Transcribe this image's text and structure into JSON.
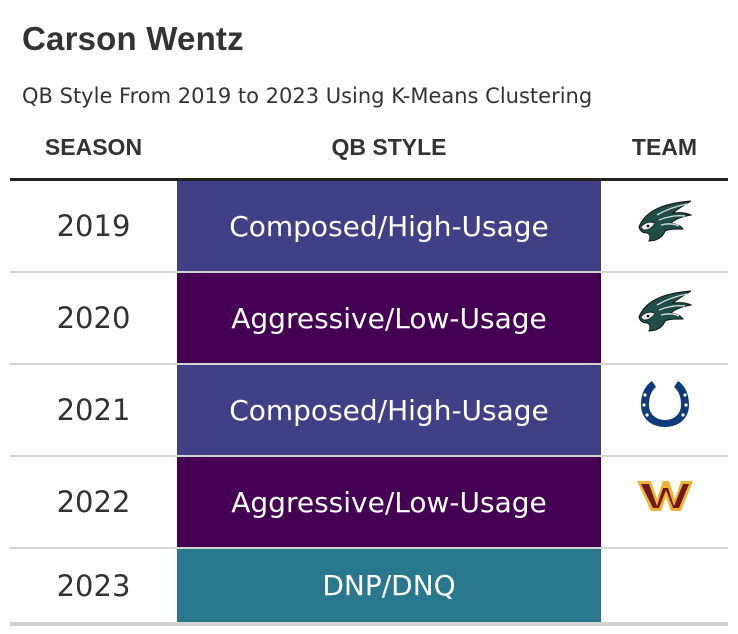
{
  "title": "Carson Wentz",
  "subtitle": "QB Style From 2019 to 2023 Using K-Means Clustering",
  "headers": {
    "season": "SEASON",
    "style": "QB STYLE",
    "team": "TEAM"
  },
  "colors": {
    "composed": "#413f86",
    "aggressive": "#440154",
    "dnp": "#2a788e"
  },
  "rows": [
    {
      "season": "2019",
      "style": "Composed/High-Usage",
      "team_icon": "eagles-logo-icon"
    },
    {
      "season": "2020",
      "style": "Aggressive/Low-Usage",
      "team_icon": "eagles-logo-icon"
    },
    {
      "season": "2021",
      "style": "Composed/High-Usage",
      "team_icon": "colts-horseshoe-icon"
    },
    {
      "season": "2022",
      "style": "Aggressive/Low-Usage",
      "team_icon": "commanders-w-icon"
    },
    {
      "season": "2023",
      "style": "DNP/DNQ",
      "team_icon": ""
    }
  ]
}
